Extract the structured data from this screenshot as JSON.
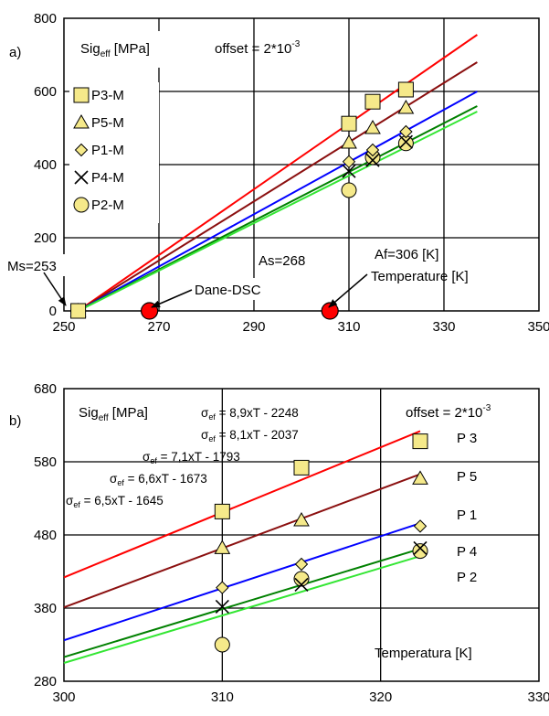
{
  "chart_data": [
    {
      "id": "a",
      "type": "scatter",
      "panel_label": "a)",
      "ylabel_main": "Sig",
      "ylabel_sub": "eff",
      "ylabel_unit": " [MPa]",
      "offset_text": "offset = 2*10",
      "offset_exp": "-3",
      "xlabel": "Temperature [K]",
      "xlim": [
        250,
        350
      ],
      "ylim": [
        0,
        800
      ],
      "xticks": [
        250,
        270,
        290,
        310,
        330,
        350
      ],
      "yticks": [
        0,
        200,
        400,
        600,
        800
      ],
      "grid": true,
      "legend_placement": "left",
      "series": [
        {
          "name": "P3-M",
          "marker": "square",
          "color": "#f5e98a",
          "line_color": "#ff0000",
          "line": [
            [
              253,
              0
            ],
            [
              337,
              755
            ]
          ],
          "points": [
            [
              253,
              0
            ],
            [
              310,
              512
            ],
            [
              315,
              572
            ],
            [
              322,
              605
            ]
          ]
        },
        {
          "name": "P5-M",
          "marker": "triangle",
          "color": "#f5e98a",
          "line_color": "#8b1010",
          "line": [
            [
              253,
              0
            ],
            [
              337,
              680
            ]
          ],
          "points": [
            [
              253,
              0
            ],
            [
              310,
              460
            ],
            [
              315,
              500
            ],
            [
              322,
              555
            ]
          ]
        },
        {
          "name": "P1-M",
          "marker": "diamond",
          "color": "#f5e98a",
          "line_color": "#0000ff",
          "line": [
            [
              253,
              0
            ],
            [
              337,
              600
            ]
          ],
          "points": [
            [
              253,
              0
            ],
            [
              310,
              408
            ],
            [
              315,
              440
            ],
            [
              322,
              490
            ]
          ]
        },
        {
          "name": "P4-M",
          "marker": "x",
          "color": "#000000",
          "line_color": "#008000",
          "line": [
            [
              253,
              0
            ],
            [
              337,
              560
            ]
          ],
          "points": [
            [
              253,
              0
            ],
            [
              310,
              382
            ],
            [
              315,
              412
            ],
            [
              322,
              462
            ]
          ]
        },
        {
          "name": "P2-M",
          "marker": "circle",
          "color": "#f5e98a",
          "line_color": "#33e633",
          "line": [
            [
              253,
              0
            ],
            [
              337,
              545
            ]
          ],
          "points": [
            [
              253,
              0
            ],
            [
              310,
              330
            ],
            [
              315,
              420
            ],
            [
              322,
              458
            ]
          ]
        }
      ],
      "dsc": {
        "label": "Dane-DSC",
        "color": "#ff0000",
        "points": [
          [
            268,
            0
          ],
          [
            306,
            0
          ]
        ]
      },
      "annotations": [
        {
          "text": "Ms=253"
        },
        {
          "text": "As=268"
        },
        {
          "text": "Af=306 [K]"
        }
      ]
    },
    {
      "id": "b",
      "type": "scatter",
      "panel_label": "b)",
      "ylabel_main": "Sig",
      "ylabel_sub": "eff",
      "ylabel_unit": " [MPa]",
      "offset_text": "offset = 2*10",
      "offset_exp": "-3",
      "xlabel": "Temperatura [K]",
      "xlim": [
        300,
        330
      ],
      "ylim": [
        280,
        680
      ],
      "xticks": [
        300,
        310,
        320,
        330
      ],
      "yticks": [
        280,
        380,
        480,
        580,
        680
      ],
      "grid": true,
      "series": [
        {
          "name": "P 3",
          "marker": "square",
          "color": "#f5e98a",
          "line_color": "#ff0000",
          "equation": "= 8,9xT - 2248",
          "line": [
            [
              300,
              422
            ],
            [
              322.5,
              622
            ]
          ],
          "points": [
            [
              310,
              512
            ],
            [
              315,
              572
            ],
            [
              322.5,
              608
            ]
          ]
        },
        {
          "name": "P 5",
          "marker": "triangle",
          "color": "#f5e98a",
          "line_color": "#8b1010",
          "equation": "= 8,1xT - 2037",
          "line": [
            [
              300,
              381
            ],
            [
              322.5,
              563
            ]
          ],
          "points": [
            [
              310,
              462
            ],
            [
              315,
              500
            ],
            [
              322.5,
              557
            ]
          ]
        },
        {
          "name": "P 1",
          "marker": "diamond",
          "color": "#f5e98a",
          "line_color": "#0000ff",
          "equation": "= 7,1xT - 1793",
          "line": [
            [
              300,
              336
            ],
            [
              322.5,
              496
            ]
          ],
          "points": [
            [
              310,
              408
            ],
            [
              315,
              440
            ],
            [
              322.5,
              492
            ]
          ]
        },
        {
          "name": "P 4",
          "marker": "x",
          "color": "#000000",
          "line_color": "#008000",
          "equation": "= 6,6xT - 1673",
          "line": [
            [
              300,
              313
            ],
            [
              322.5,
              461
            ]
          ],
          "points": [
            [
              310,
              382
            ],
            [
              315,
              412
            ],
            [
              322.5,
              462
            ]
          ]
        },
        {
          "name": "P 2",
          "marker": "circle",
          "color": "#f5e98a",
          "line_color": "#33e633",
          "equation": "= 6,5xT - 1645",
          "line": [
            [
              300,
              305
            ],
            [
              322.5,
              451
            ]
          ],
          "points": [
            [
              310,
              330
            ],
            [
              315,
              420
            ],
            [
              322.5,
              458
            ]
          ]
        }
      ],
      "equation_symbol": "σ",
      "equation_sub": "ef"
    }
  ]
}
